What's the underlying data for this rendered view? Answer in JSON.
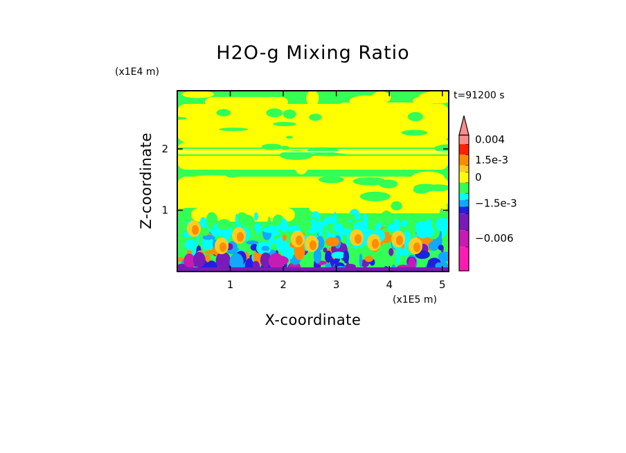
{
  "chart_data": {
    "type": "heatmap",
    "title": "H2O-g Mixing Ratio",
    "xlabel": "X-coordinate",
    "ylabel": "Z-coordinate",
    "x_unit": "(x1E5 m)",
    "y_unit": "(x1E4 m)",
    "time_label": "t=91200 s",
    "xlim": [
      0,
      5.12
    ],
    "ylim": [
      0,
      2.95
    ],
    "x_ticks": [
      {
        "value": 1,
        "label": "1"
      },
      {
        "value": 2,
        "label": "2"
      },
      {
        "value": 3,
        "label": "3"
      },
      {
        "value": 4,
        "label": "4"
      },
      {
        "value": 5,
        "label": "5"
      }
    ],
    "y_ticks": [
      {
        "value": 1,
        "label": "1"
      },
      {
        "value": 2,
        "label": "2"
      }
    ],
    "colorbar": {
      "levels": [
        {
          "color": "#ff1ab4",
          "range": "-0.009 to -0.006"
        },
        {
          "color": "#c81ab4",
          "range": "-0.006 to -0.003"
        },
        {
          "color": "#7a1ab8",
          "range": "-0.003 to -0.0015"
        },
        {
          "color": "#2020e0",
          "range": "-0.0015 to -0.001"
        },
        {
          "color": "#12a8ff",
          "range": "-0.001 to -0.0005"
        },
        {
          "color": "#00ffff",
          "range": "-0.0005 to 0"
        },
        {
          "color": "#33ff55",
          "range": "0 to 0.0005"
        },
        {
          "color": "#ffff00",
          "range": "0.0005 to 0.001"
        },
        {
          "color": "#ffcc22",
          "range": "0.001 to 0.0015"
        },
        {
          "color": "#ff8c00",
          "range": "0.0015 to 0.003"
        },
        {
          "color": "#ff2200",
          "range": "0.003 to 0.004"
        },
        {
          "color": "#ff8c8c",
          "range": "> 0.004"
        }
      ],
      "labels": [
        {
          "text": "0.004",
          "level_index": 11
        },
        {
          "text": "1.5e-3",
          "level_index": 9
        },
        {
          "text": "0",
          "level_index": 7
        },
        {
          "text": "−1.5e-3",
          "level_index": 4
        },
        {
          "text": "−0.006",
          "level_index": 1
        }
      ],
      "overflow_arrow": "top"
    },
    "field_description_levels": {
      "upper_background": "#33ff55",
      "mid_background": "#ffff00",
      "lower_mix": [
        "#00ffff",
        "#12a8ff",
        "#2020e0",
        "#7a1ab8",
        "#c81ab4",
        "#ff8c00"
      ]
    }
  }
}
